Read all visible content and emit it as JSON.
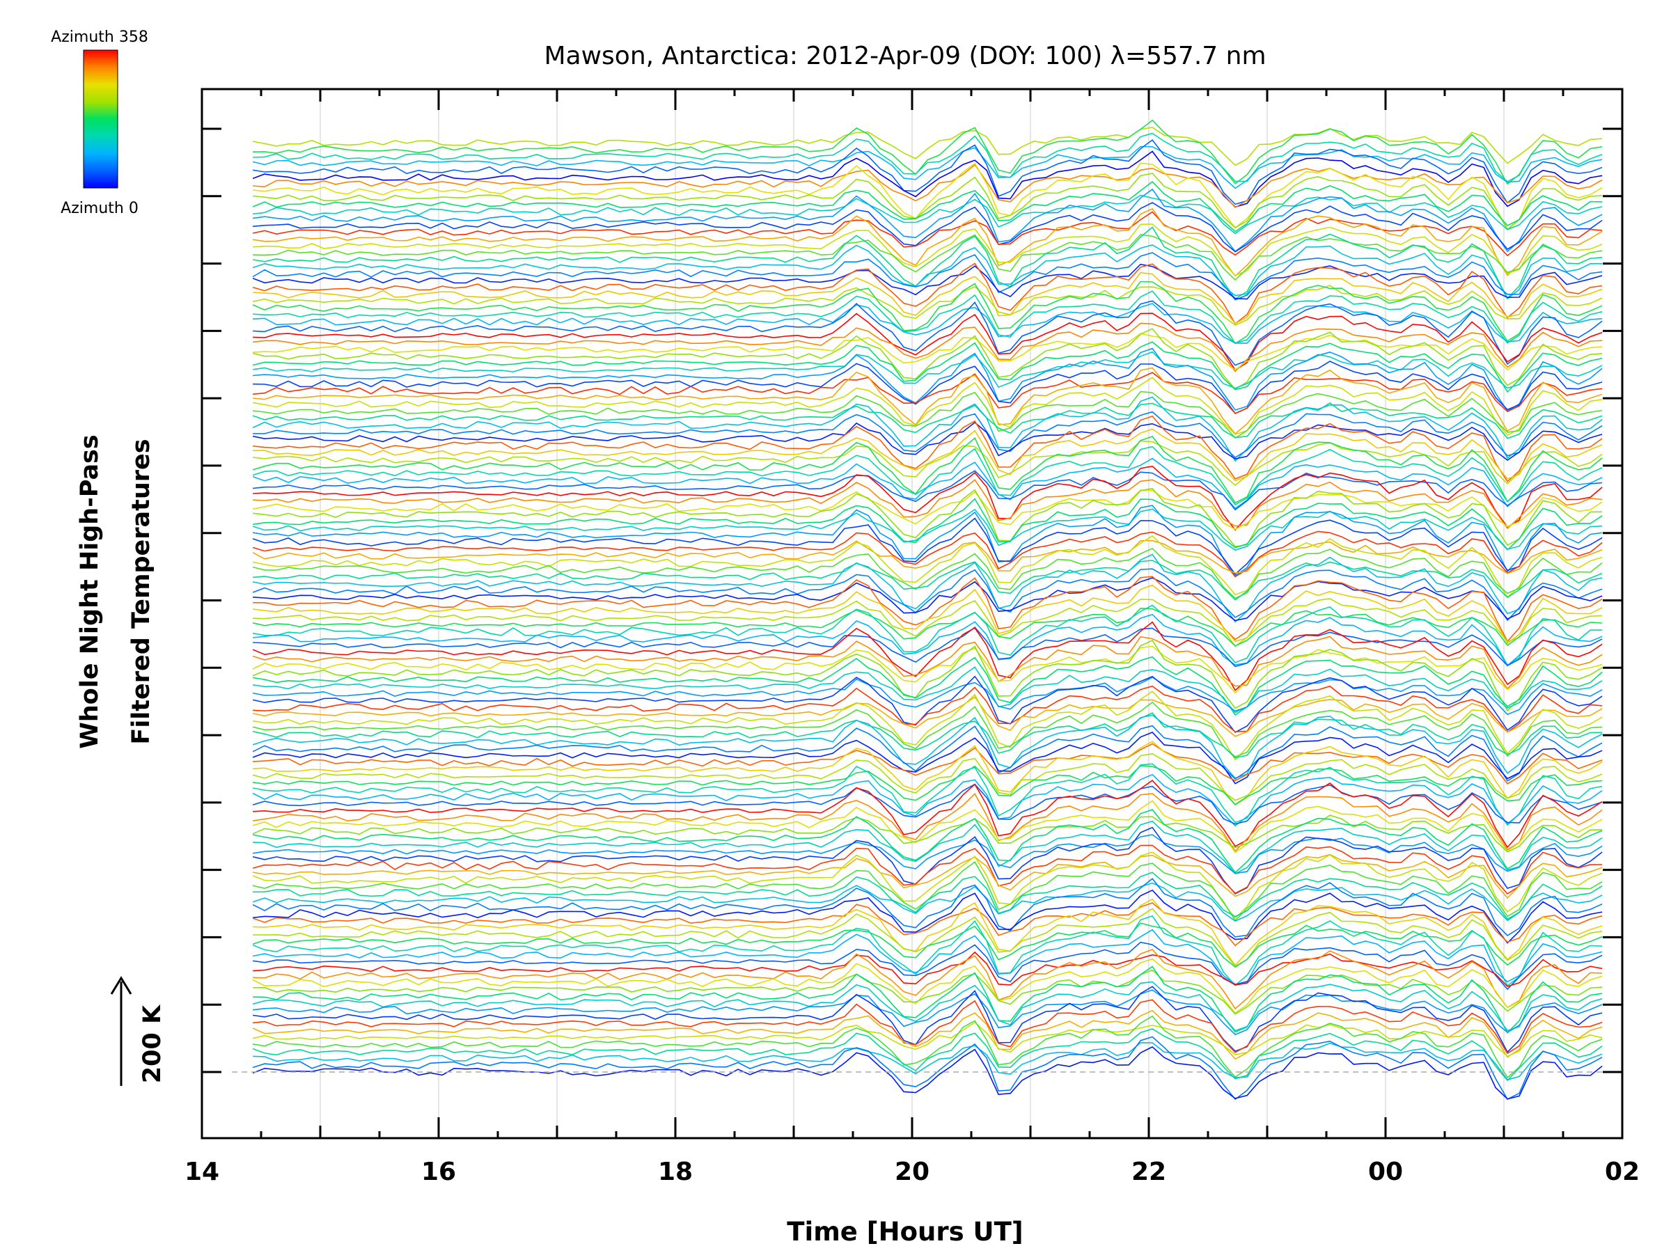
{
  "chart_data": {
    "type": "line",
    "title": "Mawson, Antarctica: 2012-Apr-09 (DOY: 100) λ=557.7 nm",
    "xlabel": "Time [Hours UT]",
    "ylabel": [
      "Whole Night High-Pass",
      "Filtered Temperatures"
    ],
    "x_tick_labels": [
      "14",
      "16",
      "18",
      "20",
      "22",
      "00",
      "02"
    ],
    "x_ticks_hours": [
      14,
      16,
      18,
      20,
      22,
      24,
      26
    ],
    "xlim_hours": [
      14,
      26
    ],
    "data_x_range_hours": [
      14.43,
      25.9
    ],
    "scale_bar_label": "200 K",
    "colorbar": {
      "top_label": "Azimuth 358",
      "bottom_label": "Azimuth 0",
      "range": [
        0,
        358
      ]
    },
    "series_count": 136,
    "trace_description": "stacked high-pass filtered temperature traces, one per azimuth, offset vertically",
    "grid": true,
    "reference_line": "dashed baseline at bottom trace",
    "colors": {
      "azimuth_low": "#0000ff",
      "azimuth_high": "#ff0000",
      "gridline": "#cccccc",
      "baseline": "#aaaaaa"
    }
  }
}
